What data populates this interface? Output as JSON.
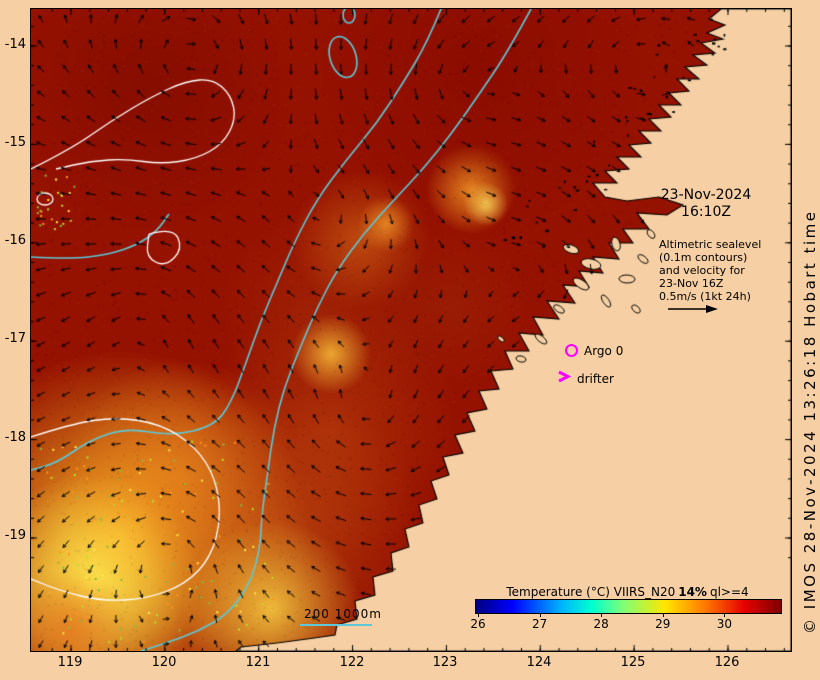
{
  "map": {
    "date_label": "23-Nov-2024",
    "time_label": "16:10Z",
    "note_lines": [
      "Altimetric sealevel",
      "(0.1m contours)",
      "and velocity for",
      "23-Nov 16Z",
      "0.5m/s (1kt 24h)"
    ],
    "argo_label": "Argo 0",
    "drifter_label": "drifter",
    "bathy_legend": "200  1000m"
  },
  "axes": {
    "x_ticks": [
      "119",
      "120",
      "121",
      "122",
      "123",
      "124",
      "125",
      "126"
    ],
    "y_ticks": [
      "-14",
      "-15",
      "-16",
      "-17",
      "-18",
      "-19"
    ]
  },
  "colorbar": {
    "title_prefix": "Temperature (°C) VIIRS_N20",
    "title_bold": "14%",
    "title_suffix": "ql>=4",
    "ticks": [
      "26",
      "27",
      "28",
      "29",
      "30"
    ],
    "gradient": [
      "#00007f 0%",
      "#0000ff 12%",
      "#00b4ff 28%",
      "#00ffd0 38%",
      "#7dff7a 48%",
      "#ffe600 62%",
      "#ff7a00 75%",
      "#e60000 88%",
      "#7f0000 100%"
    ]
  },
  "credit": "© IMOS 28-Nov-2024 13:26:18 Hobart time",
  "colors": {
    "land": "#f6d0a4",
    "ocean": "#951100",
    "contour_bathy": "#5ec8d8",
    "contour_sealevel": "#ffffff",
    "marker": "#ff00ff",
    "vector": "#000000"
  }
}
